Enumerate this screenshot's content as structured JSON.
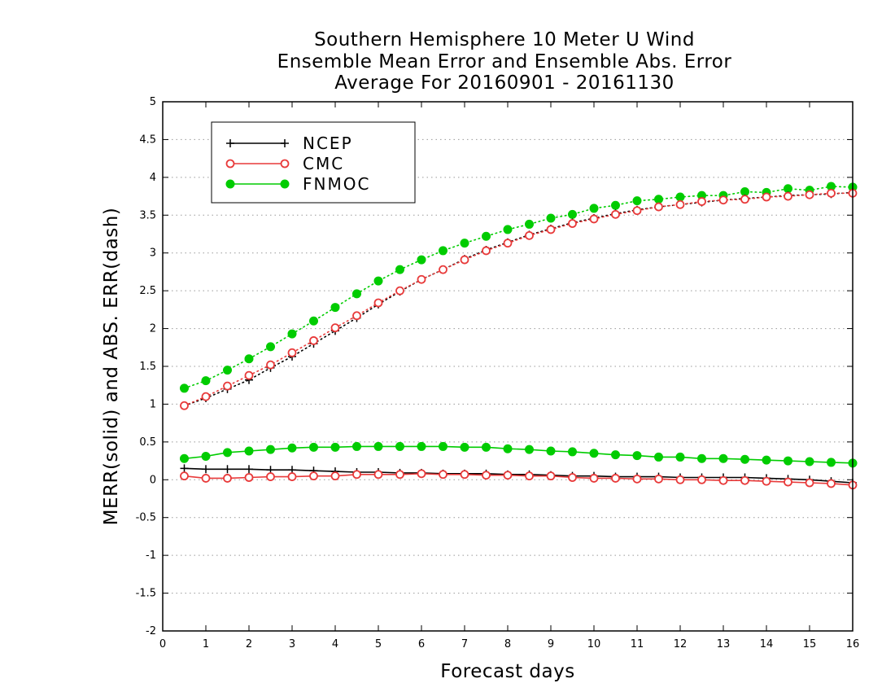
{
  "chart_data": {
    "type": "line",
    "title": [
      "Southern Hemisphere 10 Meter U Wind",
      "Ensemble Mean Error and Ensemble Abs. Error",
      "Average For 20160901 - 20161130"
    ],
    "xlabel": "Forecast days",
    "ylabel": "MERR(solid) and ABS. ERR(dash)",
    "xlim": [
      0,
      16
    ],
    "ylim": [
      -2,
      5
    ],
    "xticks": [
      "0",
      "1",
      "2",
      "3",
      "4",
      "5",
      "6",
      "7",
      "8",
      "9",
      "10",
      "11",
      "12",
      "13",
      "14",
      "15",
      "16"
    ],
    "yticks": [
      "-2",
      "-1.5",
      "-1",
      "-0.5",
      "0",
      "0.5",
      "1",
      "1.5",
      "2",
      "2.5",
      "3",
      "3.5",
      "4",
      "4.5",
      "5"
    ],
    "grid": "horizontal dotted",
    "legend_position": "top-left",
    "x": [
      0.5,
      1,
      1.5,
      2,
      2.5,
      3,
      3.5,
      4,
      4.5,
      5,
      5.5,
      6,
      6.5,
      7,
      7.5,
      8,
      8.5,
      9,
      9.5,
      10,
      10.5,
      11,
      11.5,
      12,
      12.5,
      13,
      13.5,
      14,
      14.5,
      15,
      15.5,
      16
    ],
    "series": [
      {
        "name": "NCEP",
        "color": "#000000",
        "marker": "plus",
        "merr": [
          0.15,
          0.14,
          0.14,
          0.14,
          0.13,
          0.13,
          0.12,
          0.11,
          0.1,
          0.1,
          0.09,
          0.09,
          0.08,
          0.08,
          0.08,
          0.07,
          0.07,
          0.06,
          0.05,
          0.05,
          0.04,
          0.04,
          0.04,
          0.03,
          0.03,
          0.03,
          0.03,
          0.02,
          0.01,
          0.0,
          -0.02,
          -0.04
        ],
        "abs_err": [
          0.98,
          1.08,
          1.2,
          1.32,
          1.48,
          1.63,
          1.8,
          1.97,
          2.14,
          2.32,
          2.49,
          2.65,
          2.78,
          2.92,
          3.04,
          3.14,
          3.24,
          3.32,
          3.4,
          3.46,
          3.52,
          3.57,
          3.61,
          3.64,
          3.67,
          3.7,
          3.72,
          3.74,
          3.76,
          3.77,
          3.78,
          3.8
        ]
      },
      {
        "name": "CMC",
        "color": "#e83a3a",
        "marker": "open-circle",
        "merr": [
          0.05,
          0.02,
          0.02,
          0.03,
          0.04,
          0.04,
          0.05,
          0.05,
          0.07,
          0.07,
          0.07,
          0.08,
          0.07,
          0.07,
          0.06,
          0.06,
          0.05,
          0.05,
          0.03,
          0.02,
          0.02,
          0.01,
          0.01,
          0.0,
          0.0,
          -0.01,
          -0.01,
          -0.02,
          -0.03,
          -0.04,
          -0.05,
          -0.07
        ],
        "abs_err": [
          0.98,
          1.1,
          1.24,
          1.38,
          1.52,
          1.68,
          1.84,
          2.01,
          2.17,
          2.34,
          2.5,
          2.65,
          2.78,
          2.91,
          3.03,
          3.13,
          3.23,
          3.31,
          3.39,
          3.45,
          3.51,
          3.56,
          3.61,
          3.64,
          3.68,
          3.7,
          3.71,
          3.74,
          3.75,
          3.77,
          3.79,
          3.79
        ]
      },
      {
        "name": "FNMOC",
        "color": "#00cc00",
        "marker": "filled-circle",
        "merr": [
          0.28,
          0.31,
          0.36,
          0.38,
          0.4,
          0.42,
          0.43,
          0.43,
          0.44,
          0.44,
          0.44,
          0.44,
          0.44,
          0.43,
          0.43,
          0.41,
          0.4,
          0.38,
          0.37,
          0.35,
          0.33,
          0.32,
          0.3,
          0.3,
          0.28,
          0.28,
          0.27,
          0.26,
          0.25,
          0.24,
          0.23,
          0.22
        ],
        "abs_err": [
          1.21,
          1.31,
          1.45,
          1.6,
          1.76,
          1.93,
          2.1,
          2.28,
          2.46,
          2.63,
          2.78,
          2.91,
          3.03,
          3.13,
          3.22,
          3.31,
          3.38,
          3.46,
          3.51,
          3.59,
          3.63,
          3.69,
          3.71,
          3.74,
          3.76,
          3.76,
          3.81,
          3.8,
          3.85,
          3.83,
          3.88,
          3.87
        ]
      }
    ]
  }
}
